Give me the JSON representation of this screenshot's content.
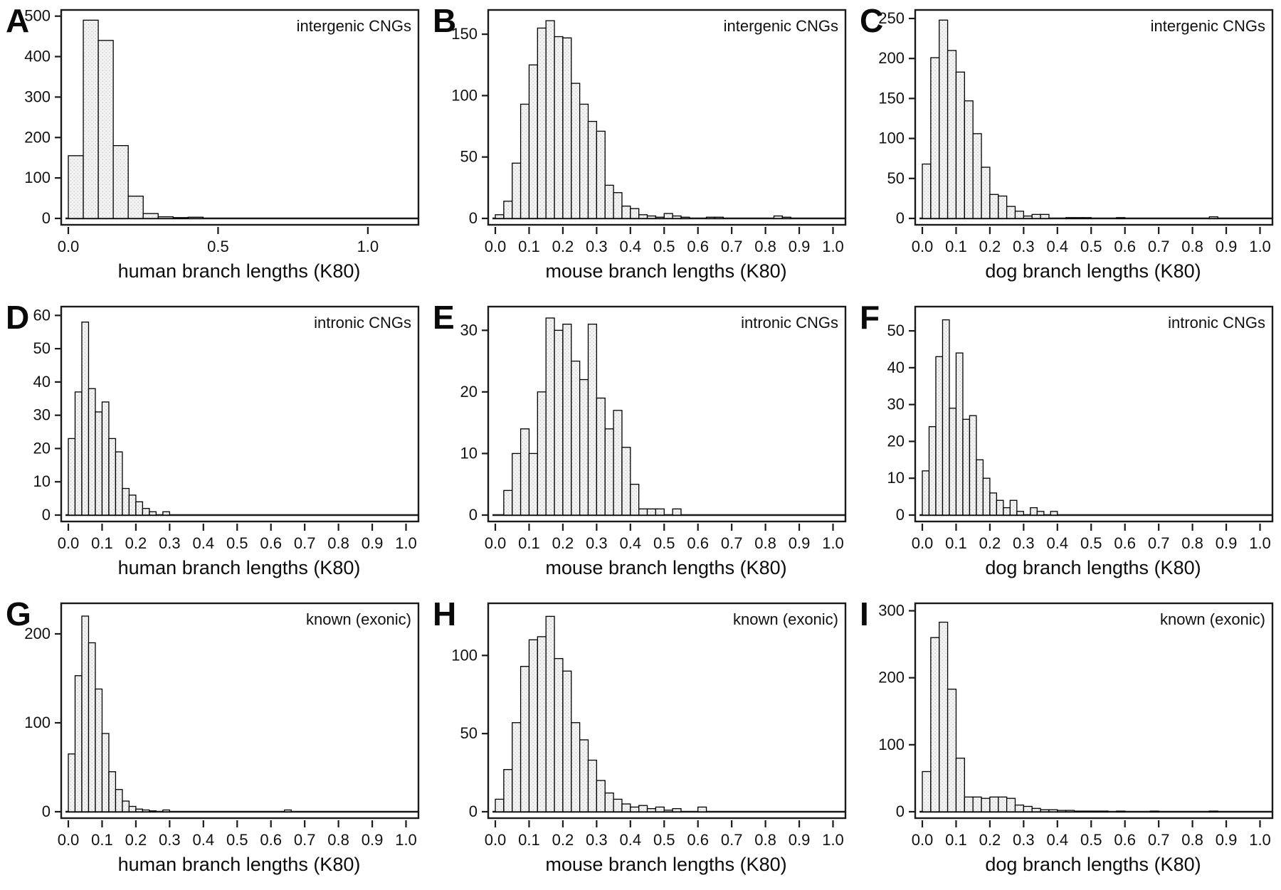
{
  "figure": {
    "background": "#ffffff",
    "bar_fill": "#f2f2f2",
    "bar_stipple_dot": "#9a9a9a",
    "bar_stroke": "#000000",
    "axis_color": "#1a1a1a"
  },
  "chart_data": [
    {
      "type": "bar",
      "panel": "A",
      "annotation": "intergenic CNGs",
      "xlabel": "human branch lengths (K80)",
      "ylabel": "",
      "xlim": [
        0,
        1.15
      ],
      "ylim": [
        0,
        510
      ],
      "xticks": [
        0.0,
        0.5,
        1.0
      ],
      "xtick_decimals": 1,
      "yticks": [
        0,
        100,
        200,
        300,
        400,
        500
      ],
      "bin_start": 0,
      "bin_width": 0.05,
      "grid": false,
      "legend": "none",
      "values": [
        155,
        490,
        440,
        180,
        55,
        12,
        4,
        2,
        3
      ]
    },
    {
      "type": "bar",
      "panel": "B",
      "annotation": "intergenic CNGs",
      "xlabel": "mouse branch lengths (K80)",
      "ylabel": "",
      "xlim": [
        0,
        1.02
      ],
      "ylim": [
        0,
        168
      ],
      "xticks": [
        0.0,
        0.1,
        0.2,
        0.3,
        0.4,
        0.5,
        0.6,
        0.7,
        0.8,
        0.9,
        1.0
      ],
      "xtick_decimals": 1,
      "yticks": [
        0,
        50,
        100,
        150
      ],
      "bin_start": 0,
      "bin_width": 0.025,
      "grid": false,
      "legend": "none",
      "values": [
        3,
        14,
        45,
        93,
        125,
        155,
        161,
        148,
        147,
        110,
        93,
        79,
        71,
        27,
        21,
        10,
        8,
        3,
        2,
        1,
        4,
        2,
        1,
        0,
        0,
        1,
        1,
        0,
        0,
        0,
        0,
        0,
        0,
        2,
        1
      ]
    },
    {
      "type": "bar",
      "panel": "C",
      "annotation": "intergenic CNGs",
      "xlabel": "dog branch lengths (K80)",
      "ylabel": "",
      "xlim": [
        0,
        1.02
      ],
      "ylim": [
        0,
        258
      ],
      "xticks": [
        0.0,
        0.1,
        0.2,
        0.3,
        0.4,
        0.5,
        0.6,
        0.7,
        0.8,
        0.9,
        1.0
      ],
      "xtick_decimals": 1,
      "yticks": [
        0,
        50,
        100,
        150,
        200,
        250
      ],
      "bin_start": 0,
      "bin_width": 0.025,
      "grid": false,
      "legend": "none",
      "values": [
        68,
        201,
        248,
        210,
        183,
        147,
        106,
        64,
        30,
        28,
        15,
        9,
        3,
        5,
        5,
        0,
        0,
        1,
        1,
        1,
        0,
        0,
        0,
        1,
        0,
        0,
        0,
        0,
        0,
        0,
        0,
        0,
        0,
        0,
        2
      ]
    },
    {
      "type": "bar",
      "panel": "D",
      "annotation": "intronic CNGs",
      "xlabel": "human branch lengths (K80)",
      "ylabel": "",
      "xlim": [
        0,
        1.02
      ],
      "ylim": [
        0,
        62
      ],
      "xticks": [
        0.0,
        0.1,
        0.2,
        0.3,
        0.4,
        0.5,
        0.6,
        0.7,
        0.8,
        0.9,
        1.0
      ],
      "xtick_decimals": 1,
      "yticks": [
        0,
        10,
        20,
        30,
        40,
        50,
        60
      ],
      "bin_start": 0,
      "bin_width": 0.02,
      "grid": false,
      "legend": "none",
      "values": [
        23,
        37,
        58,
        38,
        31,
        34,
        23,
        19,
        8,
        6,
        4,
        2,
        1,
        0,
        1
      ]
    },
    {
      "type": "bar",
      "panel": "E",
      "annotation": "intronic CNGs",
      "xlabel": "mouse branch lengths (K80)",
      "ylabel": "",
      "xlim": [
        0,
        1.02
      ],
      "ylim": [
        0,
        33.5
      ],
      "xticks": [
        0.0,
        0.1,
        0.2,
        0.3,
        0.4,
        0.5,
        0.6,
        0.7,
        0.8,
        0.9,
        1.0
      ],
      "xtick_decimals": 1,
      "yticks": [
        0,
        10,
        20,
        30
      ],
      "bin_start": 0,
      "bin_width": 0.025,
      "grid": false,
      "legend": "none",
      "values": [
        0,
        4,
        10,
        14,
        10,
        20,
        32,
        30,
        31,
        25,
        22,
        31,
        19,
        14,
        17,
        11,
        5,
        1,
        1,
        1,
        0,
        1
      ]
    },
    {
      "type": "bar",
      "panel": "F",
      "annotation": "intronic CNGs",
      "xlabel": "dog branch lengths (K80)",
      "ylabel": "",
      "xlim": [
        0,
        1.02
      ],
      "ylim": [
        0,
        56
      ],
      "xticks": [
        0.0,
        0.1,
        0.2,
        0.3,
        0.4,
        0.5,
        0.6,
        0.7,
        0.8,
        0.9,
        1.0
      ],
      "xtick_decimals": 1,
      "yticks": [
        0,
        10,
        20,
        30,
        40,
        50
      ],
      "bin_start": 0,
      "bin_width": 0.02,
      "grid": false,
      "legend": "none",
      "values": [
        12,
        24,
        43,
        53,
        29,
        44,
        26,
        27,
        15,
        10,
        6,
        4,
        2,
        4,
        1,
        0,
        2,
        1,
        0,
        1
      ]
    },
    {
      "type": "bar",
      "panel": "G",
      "annotation": "known (exonic)",
      "xlabel": "human branch lengths (K80)",
      "ylabel": "",
      "xlim": [
        0,
        1.02
      ],
      "ylim": [
        0,
        232
      ],
      "xticks": [
        0.0,
        0.1,
        0.2,
        0.3,
        0.4,
        0.5,
        0.6,
        0.7,
        0.8,
        0.9,
        1.0
      ],
      "xtick_decimals": 1,
      "yticks": [
        0,
        100,
        200
      ],
      "bin_start": 0,
      "bin_width": 0.02,
      "grid": false,
      "legend": "none",
      "values": [
        65,
        153,
        220,
        190,
        138,
        88,
        45,
        25,
        12,
        6,
        3,
        2,
        1,
        0,
        2,
        0,
        0,
        0,
        0,
        0,
        0,
        0,
        0,
        0,
        0,
        0,
        0,
        0,
        0,
        0,
        0,
        0,
        2
      ]
    },
    {
      "type": "bar",
      "panel": "H",
      "annotation": "known (exonic)",
      "xlabel": "mouse branch lengths (K80)",
      "ylabel": "",
      "xlim": [
        0,
        1.02
      ],
      "ylim": [
        0,
        132
      ],
      "xticks": [
        0.0,
        0.1,
        0.2,
        0.3,
        0.4,
        0.5,
        0.6,
        0.7,
        0.8,
        0.9,
        1.0
      ],
      "xtick_decimals": 1,
      "yticks": [
        0,
        50,
        100
      ],
      "bin_start": 0,
      "bin_width": 0.025,
      "grid": false,
      "legend": "none",
      "values": [
        8,
        27,
        57,
        93,
        110,
        112,
        125,
        98,
        90,
        57,
        46,
        33,
        20,
        12,
        8,
        5,
        3,
        4,
        2,
        3,
        1,
        2,
        0,
        0,
        3
      ]
    },
    {
      "type": "bar",
      "panel": "I",
      "annotation": "known (exonic)",
      "xlabel": "dog branch lengths (K80)",
      "ylabel": "",
      "xlim": [
        0,
        1.02
      ],
      "ylim": [
        0,
        308
      ],
      "xticks": [
        0.0,
        0.1,
        0.2,
        0.3,
        0.4,
        0.5,
        0.6,
        0.7,
        0.8,
        0.9,
        1.0
      ],
      "xtick_decimals": 1,
      "yticks": [
        0,
        100,
        200,
        300
      ],
      "bin_start": 0,
      "bin_width": 0.025,
      "grid": false,
      "legend": "none",
      "values": [
        60,
        260,
        283,
        183,
        80,
        22,
        22,
        20,
        22,
        22,
        20,
        10,
        8,
        5,
        3,
        3,
        2,
        2,
        1,
        1,
        1,
        1,
        0,
        1,
        0,
        0,
        0,
        1,
        0,
        0,
        0,
        0,
        0,
        0,
        1
      ]
    }
  ]
}
